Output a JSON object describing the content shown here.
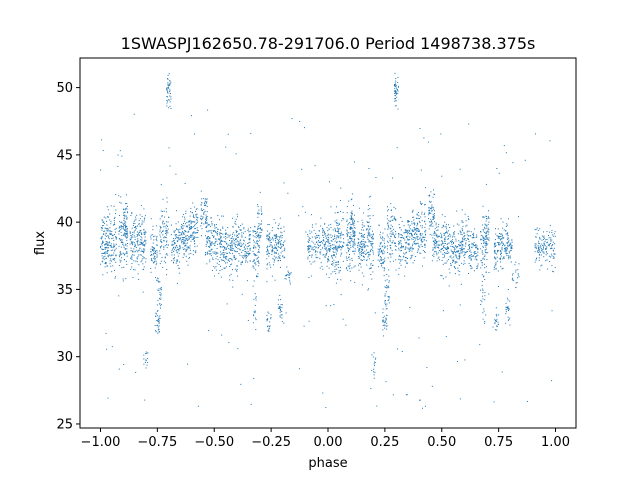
{
  "chart_data": {
    "type": "scatter",
    "title": "1SWASPJ162650.78-291706.0 Period 1498738.375s",
    "xlabel": "phase",
    "ylabel": "flux",
    "xlim": [
      -1.09,
      1.09
    ],
    "ylim": [
      24.7,
      52.2
    ],
    "xticks": [
      -1.0,
      -0.75,
      -0.5,
      -0.25,
      0.0,
      0.25,
      0.5,
      0.75,
      1.0
    ],
    "xtick_labels": [
      "−1.00",
      "−0.75",
      "−0.50",
      "−0.25",
      "0.00",
      "0.25",
      "0.50",
      "0.75",
      "1.00"
    ],
    "yticks": [
      25,
      30,
      35,
      40,
      45,
      50
    ],
    "ytick_labels": [
      "25",
      "30",
      "35",
      "40",
      "45",
      "50"
    ],
    "grid": false,
    "marker_color": "#1f77b4",
    "series": [
      {
        "clusters": [
          {
            "x": [
              -1.0,
              -0.97
            ],
            "y": [
              38.5,
              1.0
            ],
            "n": 90
          },
          {
            "x": [
              -0.97,
              -0.93
            ],
            "y": [
              38.6,
              1.2
            ],
            "n": 110
          },
          {
            "x": [
              -0.92,
              -0.88
            ],
            "y": [
              38.7,
              1.2
            ],
            "n": 110
          },
          {
            "x": [
              -0.9,
              -0.88
            ],
            "y": [
              40.0,
              0.8
            ],
            "n": 40
          },
          {
            "x": [
              -0.87,
              -0.83
            ],
            "y": [
              38.3,
              1.0
            ],
            "n": 100
          },
          {
            "x": [
              -0.83,
              -0.8
            ],
            "y": [
              38.5,
              1.3
            ],
            "n": 90
          },
          {
            "x": [
              -0.78,
              -0.75
            ],
            "y": [
              37.8,
              0.8
            ],
            "n": 70
          },
          {
            "x": [
              -0.76,
              -0.74
            ],
            "y": [
              32.6,
              0.5
            ],
            "n": 30
          },
          {
            "x": [
              -0.75,
              -0.73
            ],
            "y": [
              34.5,
              0.8
            ],
            "n": 30
          },
          {
            "x": [
              -0.74,
              -0.7
            ],
            "y": [
              39.0,
              1.2
            ],
            "n": 90
          },
          {
            "x": [
              -0.71,
              -0.69
            ],
            "y": [
              49.7,
              0.6
            ],
            "n": 45
          },
          {
            "x": [
              -0.69,
              -0.65
            ],
            "y": [
              38.3,
              1.0
            ],
            "n": 90
          },
          {
            "x": [
              -0.65,
              -0.61
            ],
            "y": [
              38.9,
              0.8
            ],
            "n": 100
          },
          {
            "x": [
              -0.61,
              -0.57
            ],
            "y": [
              39.2,
              1.0
            ],
            "n": 100
          },
          {
            "x": [
              -0.56,
              -0.53
            ],
            "y": [
              40.6,
              0.8
            ],
            "n": 60
          },
          {
            "x": [
              -0.54,
              -0.5
            ],
            "y": [
              38.5,
              0.8
            ],
            "n": 80
          },
          {
            "x": [
              -0.5,
              -0.46
            ],
            "y": [
              38.3,
              1.0
            ],
            "n": 90
          },
          {
            "x": [
              -0.46,
              -0.42
            ],
            "y": [
              37.8,
              0.8
            ],
            "n": 90
          },
          {
            "x": [
              -0.42,
              -0.38
            ],
            "y": [
              38.5,
              1.0
            ],
            "n": 90
          },
          {
            "x": [
              -0.38,
              -0.34
            ],
            "y": [
              38.0,
              0.8
            ],
            "n": 80
          },
          {
            "x": [
              -0.33,
              -0.3
            ],
            "y": [
              38.3,
              1.0
            ],
            "n": 70
          },
          {
            "x": [
              -0.33,
              -0.31
            ],
            "y": [
              34.0,
              1.2
            ],
            "n": 20
          },
          {
            "x": [
              -0.31,
              -0.29
            ],
            "y": [
              39.5,
              1.0
            ],
            "n": 40
          },
          {
            "x": [
              -0.27,
              -0.23
            ],
            "y": [
              38.0,
              1.0
            ],
            "n": 90
          },
          {
            "x": [
              -0.27,
              -0.25
            ],
            "y": [
              32.5,
              0.5
            ],
            "n": 20
          },
          {
            "x": [
              -0.23,
              -0.19
            ],
            "y": [
              38.3,
              0.8
            ],
            "n": 80
          },
          {
            "x": [
              -0.22,
              -0.2
            ],
            "y": [
              33.5,
              0.5
            ],
            "n": 25
          },
          {
            "x": [
              -0.19,
              -0.16
            ],
            "y": [
              36.0,
              0.4
            ],
            "n": 20
          },
          {
            "x": [
              -0.09,
              -0.05
            ],
            "y": [
              38.1,
              0.7
            ],
            "n": 70
          },
          {
            "x": [
              -0.05,
              -0.01
            ],
            "y": [
              38.2,
              0.8
            ],
            "n": 70
          },
          {
            "x": [
              -0.01,
              0.03
            ],
            "y": [
              38.0,
              1.0
            ],
            "n": 90
          },
          {
            "x": [
              0.03,
              0.07
            ],
            "y": [
              38.6,
              1.2
            ],
            "n": 110
          },
          {
            "x": [
              0.08,
              0.12
            ],
            "y": [
              38.7,
              1.2
            ],
            "n": 110
          },
          {
            "x": [
              0.1,
              0.12
            ],
            "y": [
              40.0,
              0.8
            ],
            "n": 40
          },
          {
            "x": [
              0.13,
              0.17
            ],
            "y": [
              38.3,
              1.0
            ],
            "n": 100
          },
          {
            "x": [
              0.17,
              0.2
            ],
            "y": [
              38.5,
              1.3
            ],
            "n": 90
          },
          {
            "x": [
              0.19,
              0.21
            ],
            "y": [
              29.6,
              0.4
            ],
            "n": 15
          },
          {
            "x": [
              0.22,
              0.25
            ],
            "y": [
              37.8,
              0.8
            ],
            "n": 70
          },
          {
            "x": [
              0.24,
              0.26
            ],
            "y": [
              32.6,
              0.5
            ],
            "n": 30
          },
          {
            "x": [
              0.25,
              0.27
            ],
            "y": [
              34.5,
              0.8
            ],
            "n": 30
          },
          {
            "x": [
              0.26,
              0.3
            ],
            "y": [
              39.0,
              1.2
            ],
            "n": 90
          },
          {
            "x": [
              0.29,
              0.31
            ],
            "y": [
              49.7,
              0.6
            ],
            "n": 45
          },
          {
            "x": [
              0.31,
              0.35
            ],
            "y": [
              38.3,
              1.0
            ],
            "n": 90
          },
          {
            "x": [
              0.35,
              0.39
            ],
            "y": [
              38.9,
              0.8
            ],
            "n": 100
          },
          {
            "x": [
              0.39,
              0.43
            ],
            "y": [
              39.2,
              1.0
            ],
            "n": 100
          },
          {
            "x": [
              0.44,
              0.47
            ],
            "y": [
              40.6,
              0.8
            ],
            "n": 60
          },
          {
            "x": [
              0.46,
              0.5
            ],
            "y": [
              38.5,
              0.8
            ],
            "n": 80
          },
          {
            "x": [
              0.5,
              0.54
            ],
            "y": [
              38.3,
              1.0
            ],
            "n": 90
          },
          {
            "x": [
              0.54,
              0.58
            ],
            "y": [
              37.8,
              0.8
            ],
            "n": 90
          },
          {
            "x": [
              0.58,
              0.62
            ],
            "y": [
              38.5,
              1.0
            ],
            "n": 90
          },
          {
            "x": [
              0.62,
              0.66
            ],
            "y": [
              38.0,
              0.8
            ],
            "n": 80
          },
          {
            "x": [
              0.67,
              0.7
            ],
            "y": [
              38.3,
              1.0
            ],
            "n": 70
          },
          {
            "x": [
              0.67,
              0.69
            ],
            "y": [
              34.0,
              1.2
            ],
            "n": 20
          },
          {
            "x": [
              0.69,
              0.71
            ],
            "y": [
              39.5,
              1.0
            ],
            "n": 40
          },
          {
            "x": [
              0.73,
              0.77
            ],
            "y": [
              38.0,
              1.0
            ],
            "n": 90
          },
          {
            "x": [
              0.73,
              0.75
            ],
            "y": [
              32.5,
              0.5
            ],
            "n": 20
          },
          {
            "x": [
              0.77,
              0.81
            ],
            "y": [
              38.3,
              0.8
            ],
            "n": 80
          },
          {
            "x": [
              0.78,
              0.8
            ],
            "y": [
              33.5,
              0.5
            ],
            "n": 25
          },
          {
            "x": [
              0.81,
              0.84
            ],
            "y": [
              36.0,
              0.4
            ],
            "n": 20
          },
          {
            "x": [
              0.91,
              0.95
            ],
            "y": [
              38.1,
              0.7
            ],
            "n": 70
          },
          {
            "x": [
              0.95,
              1.0
            ],
            "y": [
              38.2,
              0.8
            ],
            "n": 70
          },
          {
            "x": [
              -0.81,
              -0.79
            ],
            "y": [
              29.6,
              0.4
            ],
            "n": 15
          }
        ],
        "scatter_range": {
          "x": [
            -1.0,
            1.0
          ],
          "y": [
            26.0,
            48.5
          ],
          "n": 160
        }
      }
    ]
  }
}
